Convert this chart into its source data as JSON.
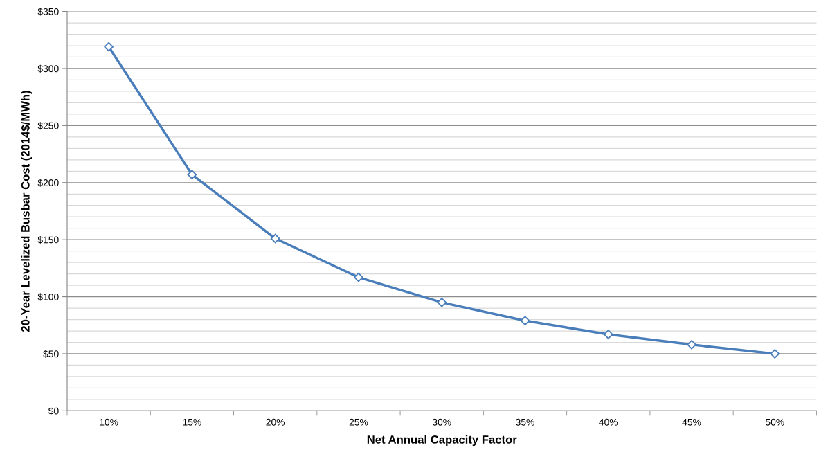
{
  "chart_data": {
    "type": "line",
    "xlabel": "Net Annual Capacity Factor",
    "ylabel": "20-Year Levelized Busbar Cost (2014$/MWh)",
    "categories": [
      "10%",
      "15%",
      "20%",
      "25%",
      "30%",
      "35%",
      "40%",
      "45%",
      "50%"
    ],
    "series": [
      {
        "color": "#4a7ebb",
        "values": [
          319,
          207,
          151,
          117,
          95,
          79,
          67,
          58,
          50
        ]
      }
    ],
    "ylim": [
      0,
      350
    ],
    "yticks": [
      {
        "value": 0,
        "label": "$0"
      },
      {
        "value": 10,
        "label": null
      },
      {
        "value": 20,
        "label": null
      },
      {
        "value": 30,
        "label": null
      },
      {
        "value": 40,
        "label": null
      },
      {
        "value": 50,
        "label": "$50"
      },
      {
        "value": 60,
        "label": null
      },
      {
        "value": 70,
        "label": null
      },
      {
        "value": 80,
        "label": null
      },
      {
        "value": 90,
        "label": null
      },
      {
        "value": 100,
        "label": "$100"
      },
      {
        "value": 110,
        "label": null
      },
      {
        "value": 120,
        "label": null
      },
      {
        "value": 130,
        "label": null
      },
      {
        "value": 140,
        "label": null
      },
      {
        "value": 150,
        "label": "$150"
      },
      {
        "value": 160,
        "label": null
      },
      {
        "value": 170,
        "label": null
      },
      {
        "value": 180,
        "label": null
      },
      {
        "value": 190,
        "label": null
      },
      {
        "value": 200,
        "label": "$200"
      },
      {
        "value": 210,
        "label": null
      },
      {
        "value": 220,
        "label": null
      },
      {
        "value": 230,
        "label": null
      },
      {
        "value": 240,
        "label": null
      },
      {
        "value": 250,
        "label": "$250"
      },
      {
        "value": 260,
        "label": null
      },
      {
        "value": 270,
        "label": null
      },
      {
        "value": 280,
        "label": null
      },
      {
        "value": 290,
        "label": null
      },
      {
        "value": 300,
        "label": "$300"
      },
      {
        "value": 310,
        "label": null
      },
      {
        "value": 320,
        "label": null
      },
      {
        "value": 330,
        "label": null
      },
      {
        "value": 340,
        "label": null
      },
      {
        "value": 350,
        "label": "$350"
      }
    ],
    "grid": "y",
    "legend": false,
    "marker": "diamond",
    "line_style": "solid"
  }
}
